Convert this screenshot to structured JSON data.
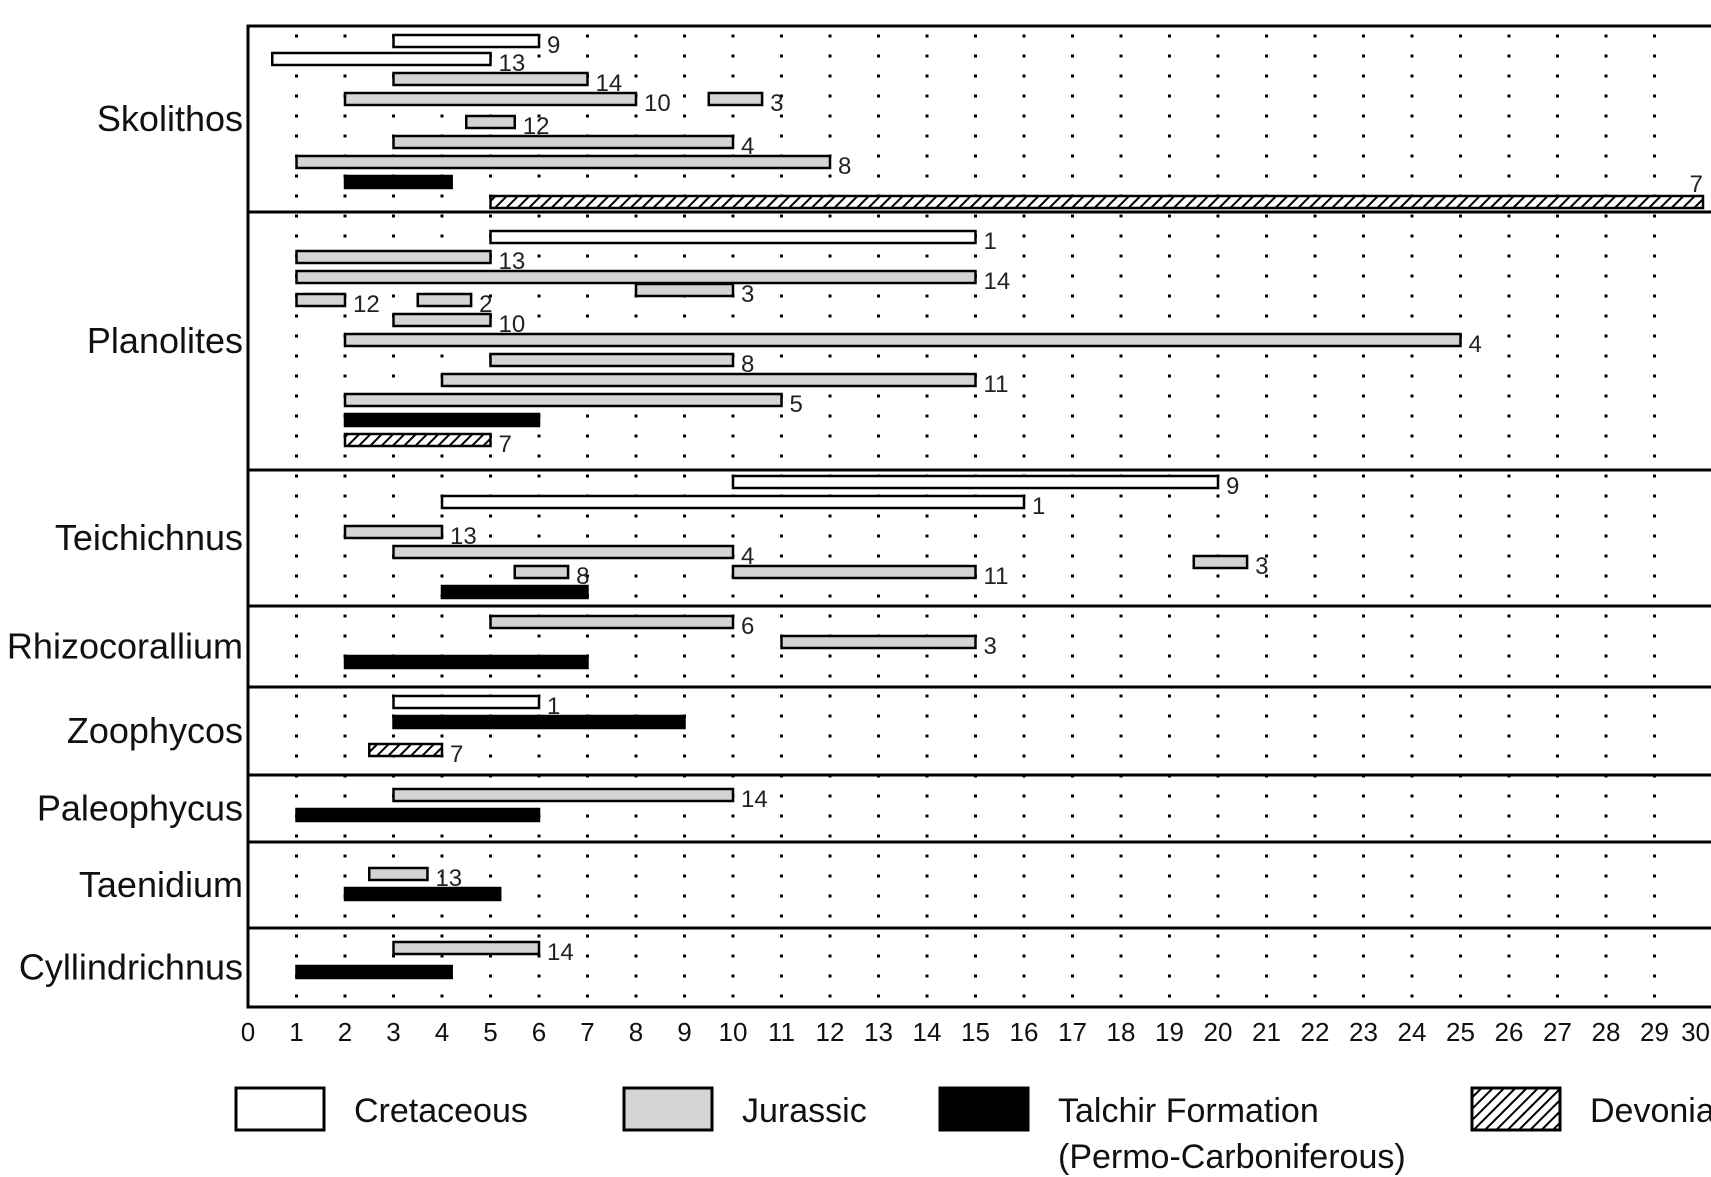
{
  "chart_data": {
    "type": "bar",
    "subtype": "horizontal-range",
    "xlim": [
      0,
      30
    ],
    "x_ticks": [
      "0",
      "1",
      "2",
      "3",
      "4",
      "5",
      "6",
      "7",
      "8",
      "9",
      "10",
      "11",
      "12",
      "13",
      "14",
      "15",
      "16",
      "17",
      "18",
      "19",
      "20",
      "21",
      "22",
      "23",
      "24",
      "25",
      "26",
      "27",
      "28",
      "29",
      "30"
    ],
    "grid": "dotted vertical lines at each integer",
    "legend_position": "bottom",
    "legend": [
      {
        "key": "cretaceous",
        "label": "Cretaceous",
        "fill": "#ffffff"
      },
      {
        "key": "jurassic",
        "label": "Jurassic",
        "fill": "#d4d4d4"
      },
      {
        "key": "talchir",
        "label": "Talchir Formation",
        "label2": "(Permo-Carboniferous)",
        "fill": "#000000"
      },
      {
        "key": "devonian",
        "label": "Devonian",
        "fill": "hatched"
      }
    ],
    "categories": [
      {
        "name": "Skolithos",
        "bars": [
          {
            "start": 3,
            "end": 6,
            "period": "cretaceous",
            "label": "9"
          },
          {
            "start": 0.5,
            "end": 5,
            "period": "cretaceous",
            "label": "13"
          },
          {
            "start": 3,
            "end": 7,
            "period": "jurassic",
            "label": "14"
          },
          {
            "start": 2,
            "end": 8,
            "period": "jurassic",
            "label": "10",
            "extra": {
              "start": 9.5,
              "end": 10.6,
              "period": "jurassic",
              "label": "3"
            }
          },
          {
            "start": 4.5,
            "end": 5.5,
            "period": "jurassic",
            "label": "12"
          },
          {
            "start": 3,
            "end": 10,
            "period": "jurassic",
            "label": "4"
          },
          {
            "start": 1,
            "end": 12,
            "period": "jurassic",
            "label": "8"
          },
          {
            "start": 2,
            "end": 4.2,
            "period": "talchir",
            "label": ""
          },
          {
            "start": 5,
            "end": 30,
            "period": "devonian",
            "label": "7"
          }
        ]
      },
      {
        "name": "Planolites",
        "bars": [
          {
            "start": 5,
            "end": 15,
            "period": "cretaceous",
            "label": "1"
          },
          {
            "start": 1,
            "end": 5,
            "period": "jurassic",
            "label": "13"
          },
          {
            "start": 1,
            "end": 15,
            "period": "jurassic",
            "label": "14"
          },
          {
            "start": 1,
            "end": 2,
            "period": "jurassic",
            "label": "12",
            "extra": {
              "start": 3.5,
              "end": 4.6,
              "period": "jurassic",
              "label": "2"
            },
            "extra2": {
              "start": 8,
              "end": 10,
              "period": "jurassic",
              "label": "3"
            }
          },
          {
            "start": 3,
            "end": 5,
            "period": "jurassic",
            "label": "10"
          },
          {
            "start": 2,
            "end": 25,
            "period": "jurassic",
            "label": "4"
          },
          {
            "start": 5,
            "end": 10,
            "period": "jurassic",
            "label": "8"
          },
          {
            "start": 4,
            "end": 15,
            "period": "jurassic",
            "label": "11"
          },
          {
            "start": 2,
            "end": 11,
            "period": "jurassic",
            "label": "5"
          },
          {
            "start": 2,
            "end": 6,
            "period": "talchir",
            "label": ""
          },
          {
            "start": 2,
            "end": 5,
            "period": "devonian",
            "label": "7"
          }
        ]
      },
      {
        "name": "Teichichnus",
        "bars": [
          {
            "start": 10,
            "end": 20,
            "period": "cretaceous",
            "label": "9"
          },
          {
            "start": 4,
            "end": 16,
            "period": "cretaceous",
            "label": "1"
          },
          {
            "start": 2,
            "end": 4,
            "period": "jurassic",
            "label": "13"
          },
          {
            "start": 3,
            "end": 10,
            "period": "jurassic",
            "label": "4"
          },
          {
            "start": 10,
            "end": 15,
            "period": "jurassic",
            "label": "11",
            "extra": {
              "start": 5.5,
              "end": 6.6,
              "period": "jurassic",
              "label": "8"
            },
            "extra2": {
              "start": 19.5,
              "end": 20.6,
              "period": "jurassic",
              "label": "3"
            }
          },
          {
            "start": 4,
            "end": 7,
            "period": "talchir",
            "label": ""
          }
        ]
      },
      {
        "name": "Rhizocorallium",
        "bars": [
          {
            "start": 5,
            "end": 10,
            "period": "jurassic",
            "label": "6"
          },
          {
            "start": 11,
            "end": 15,
            "period": "jurassic",
            "label": "3"
          },
          {
            "start": 2,
            "end": 7,
            "period": "talchir",
            "label": ""
          }
        ]
      },
      {
        "name": "Zoophycos",
        "bars": [
          {
            "start": 3,
            "end": 6,
            "period": "cretaceous",
            "label": "1"
          },
          {
            "start": 3,
            "end": 9,
            "period": "talchir",
            "label": ""
          },
          {
            "start": 2.5,
            "end": 4,
            "period": "devonian",
            "label": "7"
          }
        ]
      },
      {
        "name": "Paleophycus",
        "bars": [
          {
            "start": 3,
            "end": 10,
            "period": "jurassic",
            "label": "14"
          },
          {
            "start": 1,
            "end": 6,
            "period": "talchir",
            "label": ""
          }
        ]
      },
      {
        "name": "Taenidium",
        "bars": [
          {
            "start": 2.5,
            "end": 3.7,
            "period": "jurassic",
            "label": "13"
          },
          {
            "start": 2,
            "end": 5.2,
            "period": "talchir",
            "label": ""
          }
        ]
      },
      {
        "name": "Cyllindrichnus",
        "bars": [
          {
            "start": 3,
            "end": 6,
            "period": "jurassic",
            "label": "14"
          },
          {
            "start": 1,
            "end": 4.2,
            "period": "talchir",
            "label": ""
          }
        ]
      }
    ]
  }
}
